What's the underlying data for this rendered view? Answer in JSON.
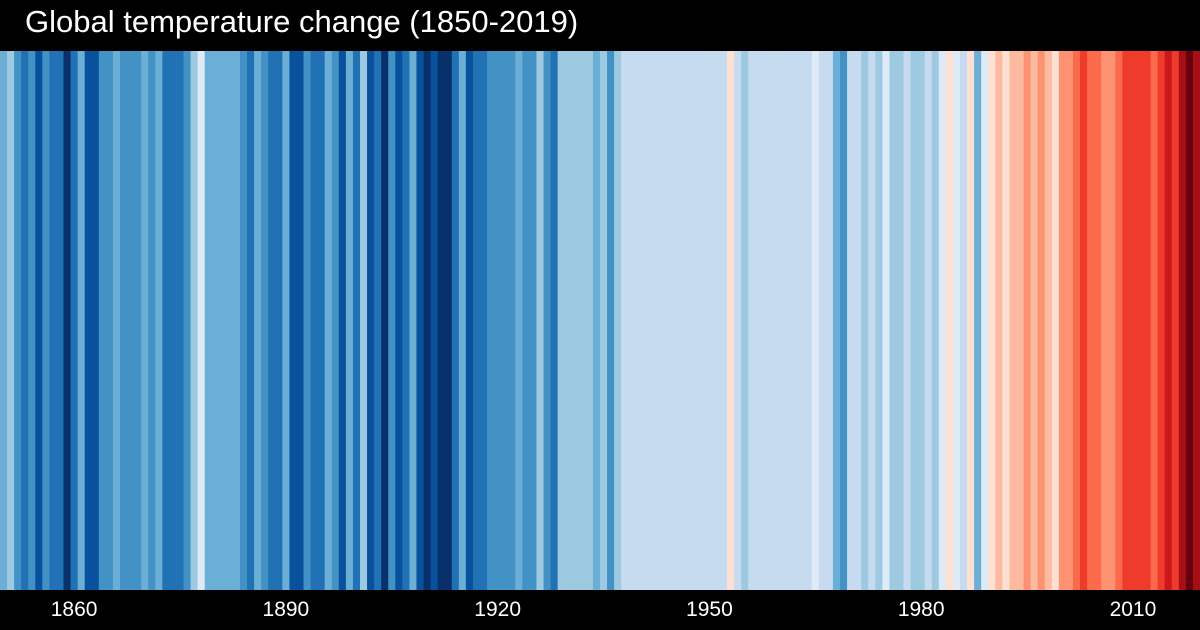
{
  "chart_data": {
    "type": "heatmap",
    "title": "Global temperature change (1850-2019)",
    "x_start": 1850,
    "x_end": 2019,
    "x_ticks": [
      1860,
      1890,
      1920,
      1950,
      1980,
      2010
    ],
    "x_tick_labels": [
      "1860",
      "1890",
      "1920",
      "1950",
      "1980",
      "2010"
    ],
    "color_scale": "blue (cool) to red (warm)",
    "colors": [
      "#6baed6",
      "#9ecae1",
      "#4292c6",
      "#2171b5",
      "#4292c6",
      "#08519c",
      "#4292c6",
      "#2171b5",
      "#2171b5",
      "#08306b",
      "#2171b5",
      "#6baed6",
      "#08519c",
      "#08519c",
      "#4292c6",
      "#4292c6",
      "#6baed6",
      "#4292c6",
      "#4292c6",
      "#4292c6",
      "#6baed6",
      "#4292c6",
      "#6baed6",
      "#2171b5",
      "#2171b5",
      "#2171b5",
      "#4292c6",
      "#9ecae1",
      "#deebf7",
      "#6baed6",
      "#6baed6",
      "#6baed6",
      "#6baed6",
      "#6baed6",
      "#4292c6",
      "#2171b5",
      "#6baed6",
      "#4292c6",
      "#2171b5",
      "#2171b5",
      "#6baed6",
      "#08519c",
      "#08519c",
      "#4292c6",
      "#2171b5",
      "#2171b5",
      "#6baed6",
      "#4292c6",
      "#08519c",
      "#6baed6",
      "#2171b5",
      "#9ecae1",
      "#08519c",
      "#2171b5",
      "#08306b",
      "#4292c6",
      "#08519c",
      "#2171b5",
      "#6baed6",
      "#08519c",
      "#08306b",
      "#08519c",
      "#08306b",
      "#08306b",
      "#2171b5",
      "#6baed6",
      "#08519c",
      "#2171b5",
      "#2171b5",
      "#4292c6",
      "#4292c6",
      "#4292c6",
      "#4292c6",
      "#6baed6",
      "#4292c6",
      "#4292c6",
      "#9ecae1",
      "#4292c6",
      "#2171b5",
      "#9ecae1",
      "#9ecae1",
      "#9ecae1",
      "#9ecae1",
      "#9ecae1",
      "#6baed6",
      "#9ecae1",
      "#4292c6",
      "#9ecae1",
      "#c6dbef",
      "#c6dbef",
      "#c6dbef",
      "#c6dbef",
      "#c6dbef",
      "#c6dbef",
      "#c6dbef",
      "#c6dbef",
      "#c6dbef",
      "#c6dbef",
      "#c6dbef",
      "#c6dbef",
      "#c6dbef",
      "#c6dbef",
      "#c6dbef",
      "#fee0d2",
      "#c6dbef",
      "#9ecae1",
      "#c6dbef",
      "#c6dbef",
      "#c6dbef",
      "#c6dbef",
      "#c6dbef",
      "#c6dbef",
      "#c6dbef",
      "#c6dbef",
      "#c6dbef",
      "#deebf7",
      "#c6dbef",
      "#c6dbef",
      "#6baed6",
      "#4292c6",
      "#c6dbef",
      "#c6dbef",
      "#9ecae1",
      "#c6dbef",
      "#9ecae1",
      "#deebf7",
      "#9ecae1",
      "#9ecae1",
      "#c6dbef",
      "#9ecae1",
      "#9ecae1",
      "#c6dbef",
      "#9ecae1",
      "#deebf7",
      "#fee0d2",
      "#deebf7",
      "#c6dbef",
      "#fee0d2",
      "#6baed6",
      "#deebf7",
      "#fee0d2",
      "#fcbba1",
      "#fee0d2",
      "#fcbba1",
      "#fcbba1",
      "#fc9272",
      "#fcbba1",
      "#fc9272",
      "#fcbba1",
      "#fee0d2",
      "#fc9272",
      "#fc9272",
      "#fb6a4a",
      "#ef3b2c",
      "#fb6a4a",
      "#fb6a4a",
      "#fc9272",
      "#fc9272",
      "#fb6a4a",
      "#ef3b2c",
      "#ef3b2c",
      "#ef3b2c",
      "#ef3b2c",
      "#fb6a4a",
      "#ef3b2c",
      "#cb181d",
      "#ef3b2c",
      "#a50f15",
      "#67000d",
      "#a50f15"
    ]
  }
}
